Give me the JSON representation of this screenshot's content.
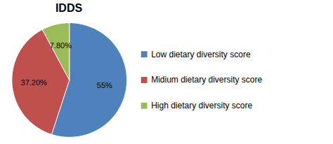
{
  "chart_data": {
    "type": "pie",
    "title": "IDDS",
    "categories": [
      "Low dietary diversity score",
      "Midium dietary diversity score",
      "High dietary diversity score"
    ],
    "values": [
      55.0,
      37.2,
      7.8
    ],
    "value_labels": [
      "55%",
      "37.20%",
      "7.80%"
    ],
    "colors": [
      "#4F81BD",
      "#C0504D",
      "#9BBB59"
    ],
    "data_labels": true,
    "legend": "right"
  }
}
